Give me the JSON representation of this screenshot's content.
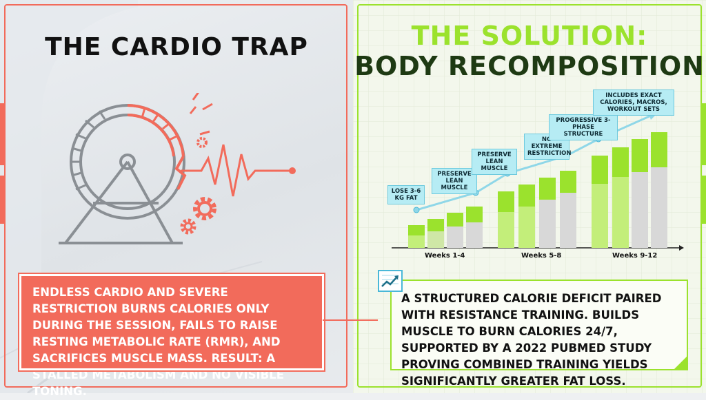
{
  "left": {
    "title": "THE CARDIO TRAP",
    "text": "ENDLESS CARDIO AND SEVERE RESTRICTION BURNS CALORIES ONLY DURING THE SESSION, FAILS TO RAISE RESTING METABOLIC RATE (RMR), AND SACRIFICES MUSCLE MASS. RESULT: A STALLED METABOLISM AND NO VISIBLE TONING.",
    "icons": [
      "hamster-wheel-icon",
      "gear-icon",
      "heartbeat-line-icon"
    ],
    "accent": "#f26b5b"
  },
  "right": {
    "title_line1": "THE SOLUTION:",
    "title_line2": "BODY RECOMPOSITION",
    "text": "A STRUCTURED CALORIE DEFICIT PAIRED WITH RESISTANCE TRAINING. BUILDS MUSCLE TO BURN CALORIES 24/7, SUPPORTED BY A 2022 PUBMED STUDY PROVING COMBINED TRAINING YIELDS SIGNIFICANTLY GREATER FAT LOSS.",
    "icons": [
      "trend-chart-icon"
    ],
    "accent": "#9be22d",
    "dark_text": "#1e3a13"
  },
  "chart": {
    "x_groups": [
      "Weeks 1-4",
      "Weeks 5-8",
      "Weeks 9-12"
    ],
    "callouts": [
      "LOSE 3-6 KG FAT",
      "PRESERVE LEAN MUSCLE",
      "PRESERVE LEAN MUSCLE",
      "NO EXTREME RESTRICTION",
      "PROGRESSIVE 3-PHASE STRUCTURE",
      "INCLUDES EXACT CALORIES, MACROS, WORKOUT SETS"
    ]
  }
}
